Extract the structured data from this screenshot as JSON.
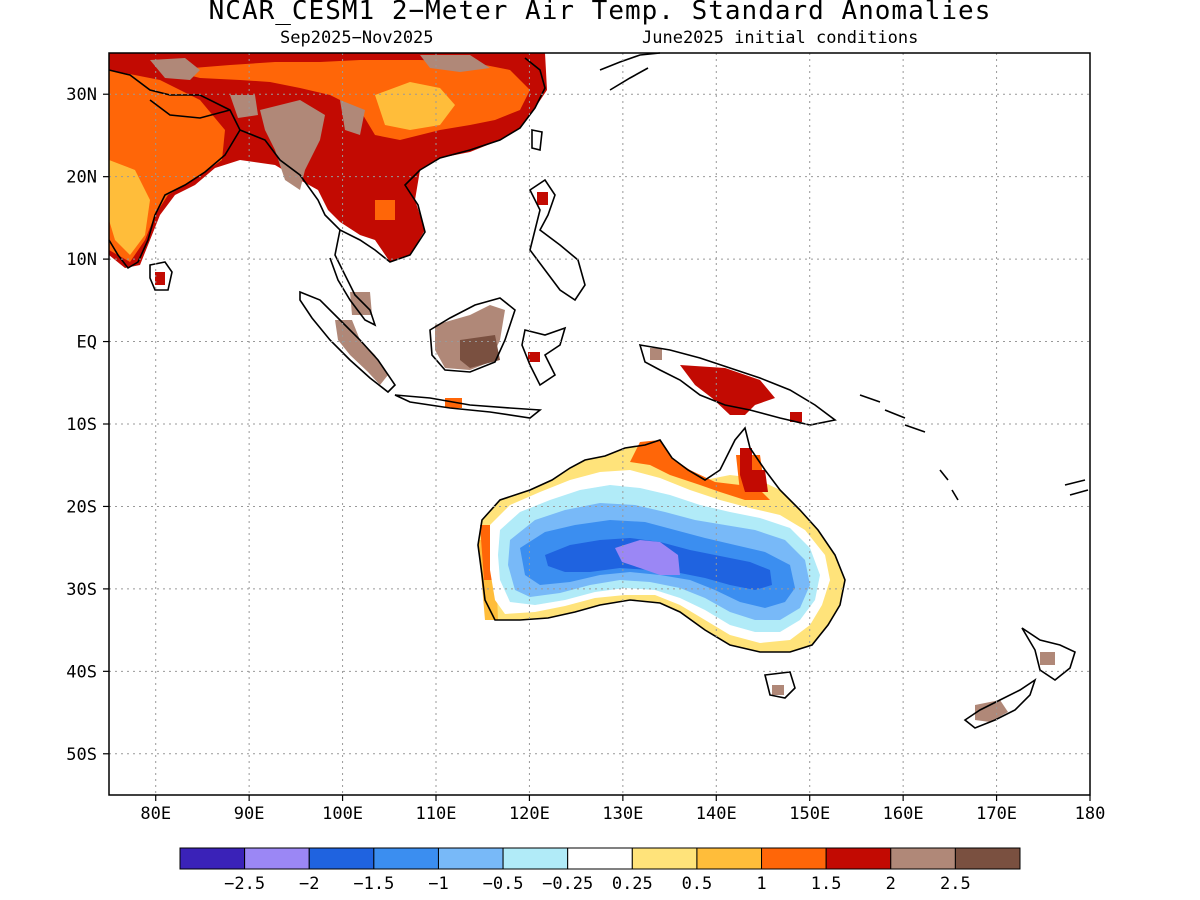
{
  "title": "NCAR_CESM1 2−Meter Air Temp. Standard Anomalies",
  "subtitle_left": "Sep2025−Nov2025",
  "subtitle_right": "June2025 initial conditions",
  "map": {
    "lon_range": [
      75,
      180
    ],
    "lat_range": [
      -55,
      35
    ],
    "lon_ticks": [
      {
        "value": 80,
        "label": "80E"
      },
      {
        "value": 90,
        "label": "90E"
      },
      {
        "value": 100,
        "label": "100E"
      },
      {
        "value": 110,
        "label": "110E"
      },
      {
        "value": 120,
        "label": "120E"
      },
      {
        "value": 130,
        "label": "130E"
      },
      {
        "value": 140,
        "label": "140E"
      },
      {
        "value": 150,
        "label": "150E"
      },
      {
        "value": 160,
        "label": "160E"
      },
      {
        "value": 170,
        "label": "170E"
      },
      {
        "value": 180,
        "label": "180"
      }
    ],
    "lat_ticks": [
      {
        "value": 30,
        "label": "30N"
      },
      {
        "value": 20,
        "label": "20N"
      },
      {
        "value": 10,
        "label": "10N"
      },
      {
        "value": 0,
        "label": "EQ"
      },
      {
        "value": -10,
        "label": "10S"
      },
      {
        "value": -20,
        "label": "20S"
      },
      {
        "value": -30,
        "label": "30S"
      },
      {
        "value": -40,
        "label": "40S"
      },
      {
        "value": -50,
        "label": "50S"
      }
    ],
    "grid": true
  },
  "colorbar": {
    "colors": [
      "#3a22b8",
      "#9b87f5",
      "#1f63e0",
      "#3b8ef0",
      "#78b9f8",
      "#b1ebf8",
      "#ffffff",
      "#ffe37a",
      "#ffbd3a",
      "#ff6608",
      "#c20a02",
      "#b08878",
      "#7a5040"
    ],
    "labels": [
      "−2.5",
      "−2",
      "−1.5",
      "−1",
      "−0.5",
      "−0.25",
      "0.25",
      "0.5",
      "1",
      "1.5",
      "2",
      "2.5"
    ]
  },
  "colors": {
    "very_warm": "#c20a02",
    "extreme_warm": "#b08878",
    "warm": "#ff6608",
    "mild_warm": "#ffbd3a",
    "slight_warm": "#ffe37a",
    "cool": "#b1ebf8",
    "cold": "#3b8ef0",
    "very_cold": "#1f63e0",
    "extreme_cold": "#9b87f5"
  }
}
